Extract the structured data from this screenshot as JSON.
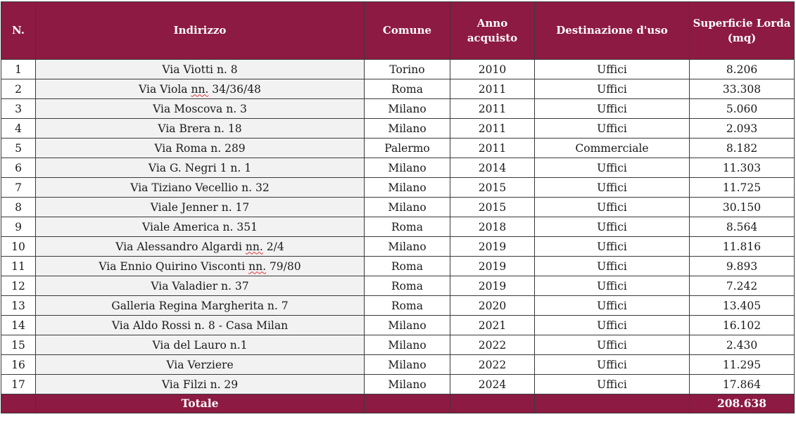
{
  "headers": {
    "n": "N.",
    "indirizzo": "Indirizzo",
    "comune": "Comune",
    "anno": "Anno acquisto",
    "destinazione": "Destinazione d'uso",
    "superficie": "Superficie Lorda (mq)"
  },
  "rows": [
    {
      "n": "1",
      "indirizzo": "Via Viotti n. 8",
      "comune": "Torino",
      "anno": "2010",
      "destinazione": "Uffici",
      "superficie": "8.206"
    },
    {
      "n": "2",
      "indirizzo": "Via Viola nn. 34/36/48",
      "comune": "Roma",
      "anno": "2011",
      "destinazione": "Uffici",
      "superficie": "33.308"
    },
    {
      "n": "3",
      "indirizzo": "Via Moscova n. 3",
      "comune": "Milano",
      "anno": "2011",
      "destinazione": "Uffici",
      "superficie": "5.060"
    },
    {
      "n": "4",
      "indirizzo": "Via Brera n. 18",
      "comune": "Milano",
      "anno": "2011",
      "destinazione": "Uffici",
      "superficie": "2.093"
    },
    {
      "n": "5",
      "indirizzo": "Via Roma n. 289",
      "comune": "Palermo",
      "anno": "2011",
      "destinazione": "Commerciale",
      "superficie": "8.182"
    },
    {
      "n": "6",
      "indirizzo": "Via G. Negri 1 n. 1",
      "comune": "Milano",
      "anno": "2014",
      "destinazione": "Uffici",
      "superficie": "11.303"
    },
    {
      "n": "7",
      "indirizzo": "Via Tiziano Vecellio n. 32",
      "comune": "Milano",
      "anno": "2015",
      "destinazione": "Uffici",
      "superficie": "11.725"
    },
    {
      "n": "8",
      "indirizzo": "Viale Jenner n. 17",
      "comune": "Milano",
      "anno": "2015",
      "destinazione": "Uffici",
      "superficie": "30.150"
    },
    {
      "n": "9",
      "indirizzo": "Viale America n. 351",
      "comune": "Roma",
      "anno": "2018",
      "destinazione": "Uffici",
      "superficie": "8.564"
    },
    {
      "n": "10",
      "indirizzo": "Via Alessandro Algardi nn. 2/4",
      "comune": "Milano",
      "anno": "2019",
      "destinazione": "Uffici",
      "superficie": "11.816"
    },
    {
      "n": "11",
      "indirizzo": "Via Ennio Quirino Visconti nn. 79/80",
      "comune": "Roma",
      "anno": "2019",
      "destinazione": "Uffici",
      "superficie": "9.893"
    },
    {
      "n": "12",
      "indirizzo": "Via Valadier n. 37",
      "comune": "Roma",
      "anno": "2019",
      "destinazione": "Uffici",
      "superficie": "7.242"
    },
    {
      "n": "13",
      "indirizzo": "Galleria Regina Margherita n. 7",
      "comune": "Roma",
      "anno": "2020",
      "destinazione": "Uffici",
      "superficie": "13.405"
    },
    {
      "n": "14",
      "indirizzo": "Via Aldo Rossi n. 8 - Casa Milan",
      "comune": "Milano",
      "anno": "2021",
      "destinazione": "Uffici",
      "superficie": "16.102"
    },
    {
      "n": "15",
      "indirizzo": "Via del Lauro n.1",
      "comune": "Milano",
      "anno": "2022",
      "destinazione": "Uffici",
      "superficie": "2.430"
    },
    {
      "n": "16",
      "indirizzo": "Via Verziere",
      "comune": "Milano",
      "anno": "2022",
      "destinazione": "Uffici",
      "superficie": "11.295"
    },
    {
      "n": "17",
      "indirizzo": "Via Filzi n. 29",
      "comune": "Milano",
      "anno": "2024",
      "destinazione": "Uffici",
      "superficie": "17.864"
    }
  ],
  "totals": {
    "label": "Totale",
    "superficie": "208.638"
  },
  "colors": {
    "header_bg": "#8d1a42",
    "header_text": "#ffffff",
    "address_bg": "#f2f2f2",
    "border": "#3a3a3a"
  }
}
